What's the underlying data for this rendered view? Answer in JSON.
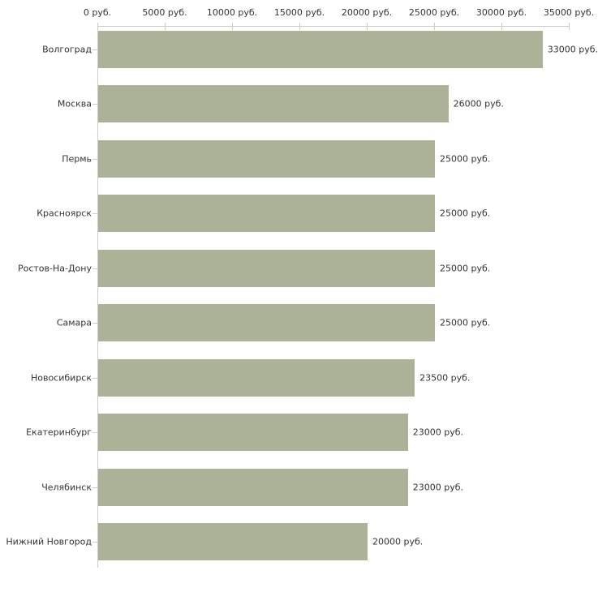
{
  "chart_data": {
    "type": "bar",
    "orientation": "horizontal",
    "title": "",
    "xlabel": "",
    "ylabel": "",
    "categories": [
      "Волгоград",
      "Москва",
      "Пермь",
      "Красноярск",
      "Ростов-На-Дону",
      "Самара",
      "Новосибирск",
      "Екатеринбург",
      "Челябинск",
      "Нижний Новгород"
    ],
    "values": [
      33000,
      26000,
      25000,
      25000,
      25000,
      25000,
      23500,
      23000,
      23000,
      20000
    ],
    "value_labels": [
      "33000 руб.",
      "26000 руб.",
      "25000 руб.",
      "25000 руб.",
      "25000 руб.",
      "25000 руб.",
      "23500 руб.",
      "23000 руб.",
      "23000 руб.",
      "20000 руб."
    ],
    "x_tick_labels": [
      "0 руб.",
      "5000 руб.",
      "10000 руб.",
      "15000 руб.",
      "20000 руб.",
      "25000 руб.",
      "30000 руб.",
      "35000 руб."
    ],
    "x_tick_values": [
      0,
      5000,
      10000,
      15000,
      20000,
      25000,
      30000,
      35000
    ],
    "xlim": [
      0,
      35000
    ],
    "grid": false,
    "legend": false,
    "colors": {
      "bar": "#acb298",
      "axis": "#cccccc",
      "tick": "#cfcfb8",
      "text": "#333333",
      "background": "#ffffff"
    }
  }
}
